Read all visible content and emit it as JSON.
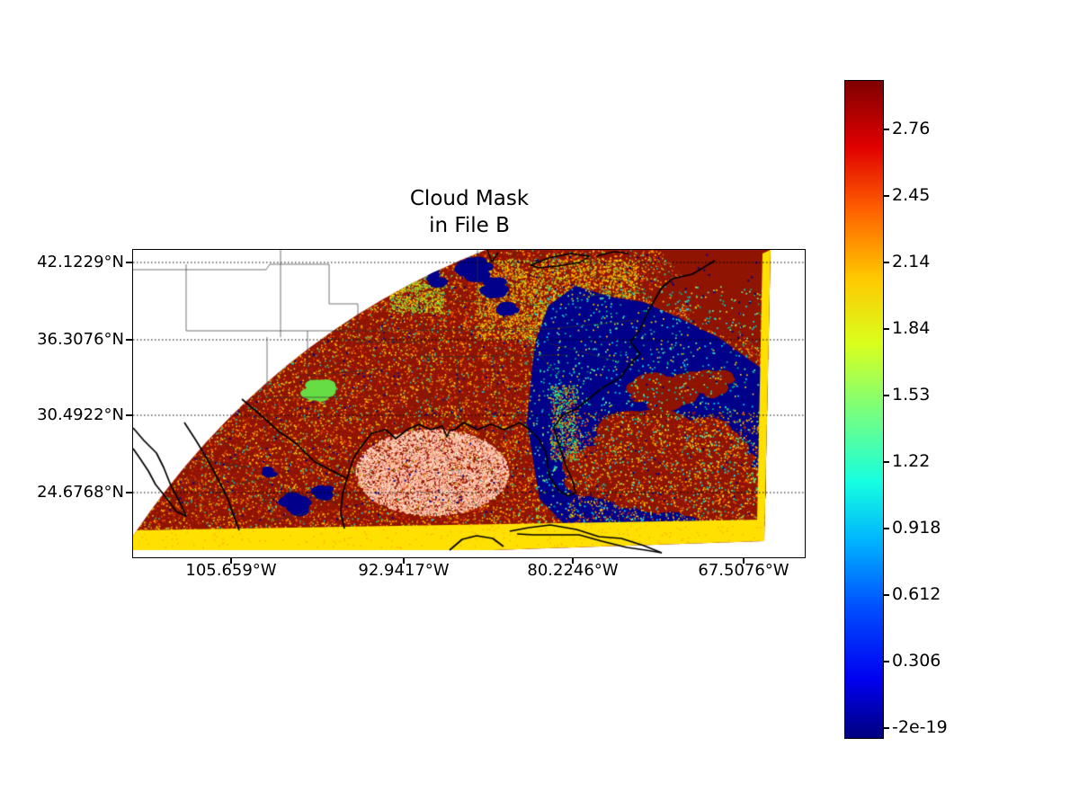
{
  "figure": {
    "title_line1": "Cloud Mask",
    "title_line2": "in File B"
  },
  "chart_data": {
    "type": "heatmap",
    "title": "Cloud Mask\nin File B",
    "xlabel": "",
    "ylabel": "",
    "x_tick_labels": [
      "105.659°W",
      "92.9417°W",
      "80.2246°W",
      "67.5076°W"
    ],
    "y_tick_labels": [
      "42.1229°N",
      "36.3076°N",
      "30.4922°N",
      "24.6768°N"
    ],
    "grid": "dotted horizontal gridlines at each latitude tick",
    "colorbar": {
      "orientation": "vertical",
      "position": "right",
      "colormap": "jet",
      "tick_labels": [
        "2.76",
        "2.45",
        "2.14",
        "1.84",
        "1.53",
        "1.22",
        "0.918",
        "0.612",
        "0.306",
        "-2e-19"
      ],
      "tick_values": [
        2.76,
        2.45,
        2.14,
        1.84,
        1.53,
        1.22,
        0.918,
        0.612,
        0.306,
        -2e-19
      ]
    },
    "map": {
      "region": "Southeastern United States, Gulf of Mexico, western Atlantic, northern Mexico, Cuba, Yucatan",
      "features": [
        "curved satellite swath; upper-left corner of plot has no data (white)",
        "dark red pixels (value near colorbar max) over land and cloudy ocean, heavily speckled with orange/yellow/green noise",
        "dark blue pixels (value near 0) over clear Atlantic Ocean east of Florida and scattered inland patches",
        "large dark red cloud patches embedded inside the blue ocean region",
        "bright yellow stripe (~1.84) along the bottom swath edge and along the right swath edge",
        "pale mottled speckle over the Gulf of Mexico off the Texas/Louisiana coast",
        "black coastlines and thin gray state/country borders drawn over the data",
        "dotted black latitude gridlines crossing the whole plot"
      ]
    }
  },
  "colors": {
    "base_red": "#8f1402",
    "ocean_navy": "#00008b",
    "band_yellow": "#ffe000",
    "map_line": "#000000",
    "state_line": "#333333",
    "grid_line": "#000000",
    "background": "#ffffff"
  }
}
